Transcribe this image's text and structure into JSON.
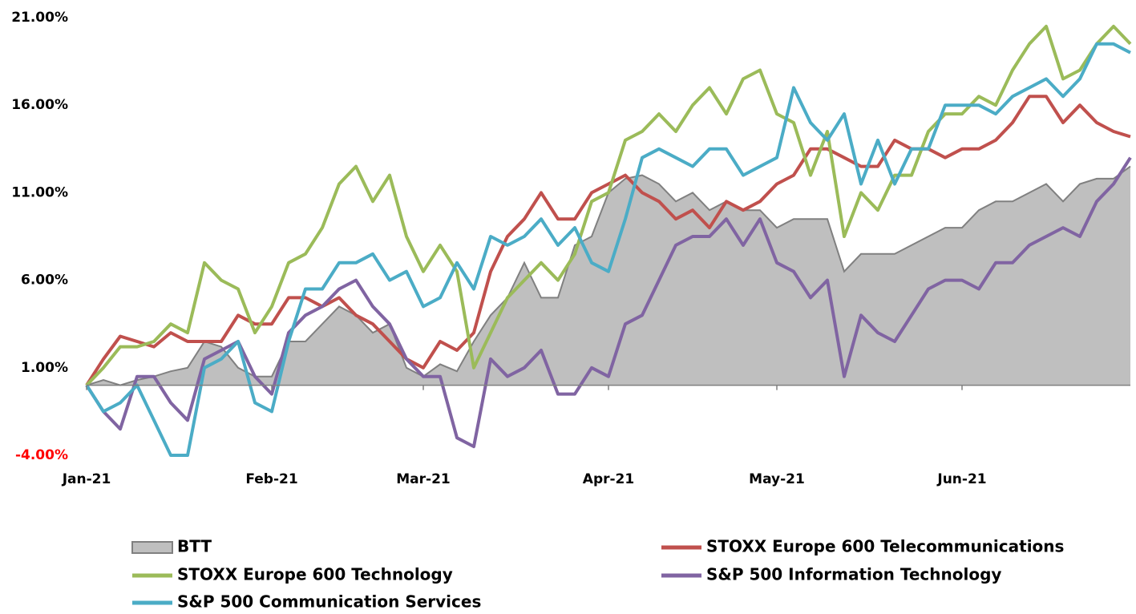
{
  "chart_data": {
    "type": "line",
    "categories": [
      "Jan-21",
      null,
      null,
      null,
      null,
      null,
      null,
      null,
      null,
      null,
      null,
      "Feb-21",
      null,
      null,
      null,
      null,
      null,
      null,
      null,
      null,
      "Mar-21",
      null,
      null,
      null,
      null,
      null,
      null,
      null,
      null,
      null,
      null,
      "Apr-21",
      null,
      null,
      null,
      null,
      null,
      null,
      null,
      null,
      null,
      "May-21",
      null,
      null,
      null,
      null,
      null,
      null,
      null,
      null,
      null,
      null,
      "Jun-21",
      null,
      null,
      null,
      null,
      null,
      null,
      null,
      null,
      null,
      null
    ],
    "ylim": [
      -4,
      21
    ],
    "yticks": [
      {
        "value": -4,
        "label": "-4.00%"
      },
      {
        "value": 1,
        "label": "1.00%"
      },
      {
        "value": 6,
        "label": "6.00%"
      },
      {
        "value": 11,
        "label": "11.00%"
      },
      {
        "value": 16,
        "label": "16.00%"
      },
      {
        "value": 21,
        "label": "21.00%"
      }
    ],
    "negative_tick_color": "#ff0000",
    "legend": "bottom",
    "series": [
      {
        "name": "BTT",
        "kind": "area",
        "color": "#bfbfbf",
        "edge_color": "#808080",
        "values": [
          0,
          0.3,
          0,
          0.3,
          0.5,
          0.8,
          1.0,
          2.5,
          2.2,
          1.0,
          0.5,
          0.5,
          2.5,
          2.5,
          3.5,
          4.5,
          4.0,
          3.0,
          3.5,
          1.0,
          0.5,
          1.2,
          0.8,
          2.5,
          4.0,
          5.0,
          7.0,
          5.0,
          5.0,
          8.0,
          8.5,
          11.0,
          11.8,
          12.0,
          11.5,
          10.5,
          11.0,
          10.0,
          10.5,
          10.0,
          10.0,
          9.0,
          9.5,
          9.5,
          9.5,
          6.5,
          7.5,
          7.5,
          7.5,
          8.0,
          8.5,
          9.0,
          9.0,
          10.0,
          10.5,
          10.5,
          11.0,
          11.5,
          10.5,
          11.5,
          11.8,
          11.8,
          12.5
        ]
      },
      {
        "name": "STOXX Europe 600 Telecommunications",
        "kind": "line",
        "color": "#c0504d",
        "values": [
          0,
          1.5,
          2.8,
          2.5,
          2.2,
          3.0,
          2.5,
          2.5,
          2.5,
          4.0,
          3.5,
          3.5,
          5.0,
          5.0,
          4.5,
          5.0,
          4.0,
          3.5,
          2.5,
          1.5,
          1.0,
          2.5,
          2.0,
          3.0,
          6.5,
          8.5,
          9.5,
          11.0,
          9.5,
          9.5,
          11.0,
          11.5,
          12.0,
          11.0,
          10.5,
          9.5,
          10.0,
          9.0,
          10.5,
          10.0,
          10.5,
          11.5,
          12.0,
          13.5,
          13.5,
          13.0,
          12.5,
          12.5,
          14.0,
          13.5,
          13.5,
          13.0,
          13.5,
          13.5,
          14.0,
          15.0,
          16.5,
          16.5,
          15.0,
          16.0,
          15.0,
          14.5,
          14.2
        ]
      },
      {
        "name": "STOXX Europe 600 Technology",
        "kind": "line",
        "color": "#9bbb59",
        "values": [
          0,
          1.0,
          2.2,
          2.2,
          2.5,
          3.5,
          3.0,
          7.0,
          6.0,
          5.5,
          3.0,
          4.5,
          7.0,
          7.5,
          9.0,
          11.5,
          12.5,
          10.5,
          12.0,
          8.5,
          6.5,
          8.0,
          6.5,
          1.0,
          3.0,
          5.0,
          6.0,
          7.0,
          6.0,
          7.5,
          10.5,
          11.0,
          14.0,
          14.5,
          15.5,
          14.5,
          16.0,
          17.0,
          15.5,
          17.5,
          18.0,
          15.5,
          15.0,
          12.0,
          14.5,
          8.5,
          11.0,
          10.0,
          12.0,
          12.0,
          14.5,
          15.5,
          15.5,
          16.5,
          16.0,
          18.0,
          19.5,
          20.5,
          17.5,
          18.0,
          19.5,
          20.5,
          19.5
        ]
      },
      {
        "name": "S&P 500 Information Technology",
        "kind": "line",
        "color": "#8064a2",
        "values": [
          0,
          -1.5,
          -2.5,
          0.5,
          0.5,
          -1.0,
          -2.0,
          1.5,
          2.0,
          2.5,
          0.5,
          -0.5,
          3.0,
          4.0,
          4.5,
          5.5,
          6.0,
          4.5,
          3.5,
          1.5,
          0.5,
          0.5,
          -3.0,
          -3.5,
          1.5,
          0.5,
          1.0,
          2.0,
          -0.5,
          -0.5,
          1.0,
          0.5,
          3.5,
          4.0,
          6.0,
          8.0,
          8.5,
          8.5,
          9.5,
          8.0,
          9.5,
          7.0,
          6.5,
          5.0,
          6.0,
          0.5,
          4.0,
          3.0,
          2.5,
          4.0,
          5.5,
          6.0,
          6.0,
          5.5,
          7.0,
          7.0,
          8.0,
          8.5,
          9.0,
          8.5,
          10.5,
          11.5,
          13.0
        ]
      },
      {
        "name": "S&P 500 Communication Services",
        "kind": "line",
        "color": "#4bacc6",
        "values": [
          0,
          -1.5,
          -1.0,
          0.0,
          -2.0,
          -4.0,
          -4.0,
          1.0,
          1.5,
          2.5,
          -1.0,
          -1.5,
          2.5,
          5.5,
          5.5,
          7.0,
          7.0,
          7.5,
          6.0,
          6.5,
          4.5,
          5.0,
          7.0,
          5.5,
          8.5,
          8.0,
          8.5,
          9.5,
          8.0,
          9.0,
          7.0,
          6.5,
          9.5,
          13.0,
          13.5,
          13.0,
          12.5,
          13.5,
          13.5,
          12.0,
          12.5,
          13.0,
          17.0,
          15.0,
          14.0,
          15.5,
          11.5,
          14.0,
          11.5,
          13.5,
          13.5,
          16.0,
          16.0,
          16.0,
          15.5,
          16.5,
          17.0,
          17.5,
          16.5,
          17.5,
          19.5,
          19.5,
          19.0
        ]
      }
    ]
  }
}
